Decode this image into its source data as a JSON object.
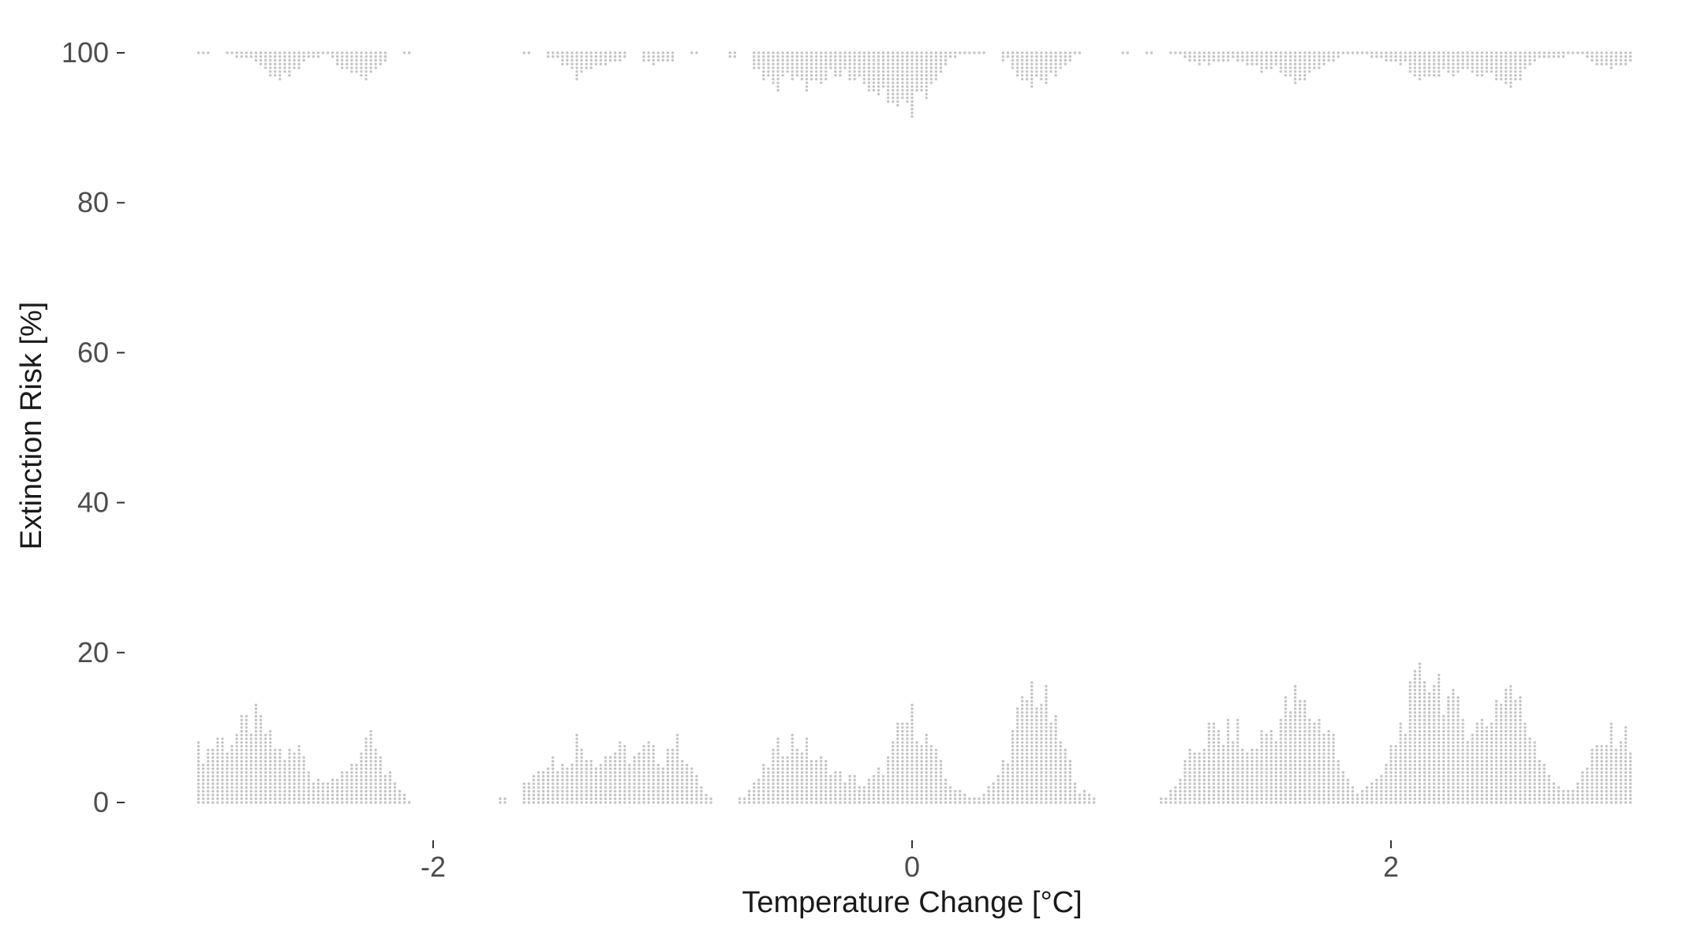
{
  "chart_data": {
    "type": "scatter",
    "subtype": "dot-histogram",
    "title": "",
    "xlabel": "Temperature Change [°C]",
    "ylabel": "Extinction Risk [%]",
    "xlim": [
      -3.0,
      3.0
    ],
    "ylim": [
      0,
      100
    ],
    "x_ticks": [
      -2,
      0,
      2
    ],
    "x_tick_labels": [
      "-2",
      "0",
      "2"
    ],
    "y_ticks": [
      0,
      20,
      40,
      60,
      80,
      100
    ],
    "y_tick_labels": [
      "0",
      "20",
      "40",
      "60",
      "80",
      "100"
    ],
    "grid": false,
    "legend": "none",
    "point_color": "#c4c4c4",
    "bin_width": 0.02,
    "dot_step": 0.5,
    "series": [
      {
        "values_at": 0,
        "x_range": [
          -2.98,
          3.0
        ],
        "stacks": [
          {
            "x": -2.95,
            "y": 7.0
          },
          {
            "x": -2.9,
            "y": 9.0
          },
          {
            "x": -2.85,
            "y": 8.0
          },
          {
            "x": -2.8,
            "y": 10.0
          },
          {
            "x": -2.75,
            "y": 11.5
          },
          {
            "x": -2.7,
            "y": 9.5
          },
          {
            "x": -2.65,
            "y": 7.0
          },
          {
            "x": -2.6,
            "y": 6.5
          },
          {
            "x": -2.55,
            "y": 7.5
          },
          {
            "x": -2.5,
            "y": 3.5
          },
          {
            "x": -2.45,
            "y": 4.0
          },
          {
            "x": -2.4,
            "y": 3.0
          },
          {
            "x": -2.35,
            "y": 5.5
          },
          {
            "x": -2.3,
            "y": 7.0
          },
          {
            "x": -2.25,
            "y": 8.5
          },
          {
            "x": -2.2,
            "y": 4.0
          },
          {
            "x": -2.15,
            "y": 3.0
          },
          {
            "x": -2.1,
            "y": 0.5
          },
          {
            "x": -1.7,
            "y": 1.5
          },
          {
            "x": -1.6,
            "y": 3.0
          },
          {
            "x": -1.55,
            "y": 5.5
          },
          {
            "x": -1.5,
            "y": 6.0
          },
          {
            "x": -1.45,
            "y": 5.0
          },
          {
            "x": -1.4,
            "y": 8.5
          },
          {
            "x": -1.35,
            "y": 7.0
          },
          {
            "x": -1.3,
            "y": 6.0
          },
          {
            "x": -1.25,
            "y": 7.5
          },
          {
            "x": -1.2,
            "y": 7.0
          },
          {
            "x": -1.15,
            "y": 6.0
          },
          {
            "x": -1.1,
            "y": 7.5
          },
          {
            "x": -1.05,
            "y": 6.0
          },
          {
            "x": -1.0,
            "y": 8.5
          },
          {
            "x": -0.95,
            "y": 7.0
          },
          {
            "x": -0.9,
            "y": 3.5
          },
          {
            "x": -0.85,
            "y": 1.0
          },
          {
            "x": -0.7,
            "y": 1.0
          },
          {
            "x": -0.65,
            "y": 3.0
          },
          {
            "x": -0.6,
            "y": 5.5
          },
          {
            "x": -0.55,
            "y": 8.0
          },
          {
            "x": -0.5,
            "y": 8.5
          },
          {
            "x": -0.45,
            "y": 8.0
          },
          {
            "x": -0.4,
            "y": 6.0
          },
          {
            "x": -0.35,
            "y": 5.0
          },
          {
            "x": -0.3,
            "y": 4.0
          },
          {
            "x": -0.25,
            "y": 3.5
          },
          {
            "x": -0.2,
            "y": 2.5
          },
          {
            "x": -0.15,
            "y": 4.0
          },
          {
            "x": -0.1,
            "y": 6.0
          },
          {
            "x": -0.05,
            "y": 10.0
          },
          {
            "x": 0.0,
            "y": 11.5
          },
          {
            "x": 0.05,
            "y": 9.5
          },
          {
            "x": 0.1,
            "y": 6.5
          },
          {
            "x": 0.15,
            "y": 3.0
          },
          {
            "x": 0.2,
            "y": 1.5
          },
          {
            "x": 0.25,
            "y": 1.0
          },
          {
            "x": 0.3,
            "y": 1.5
          },
          {
            "x": 0.35,
            "y": 3.0
          },
          {
            "x": 0.4,
            "y": 7.0
          },
          {
            "x": 0.45,
            "y": 12.0
          },
          {
            "x": 0.5,
            "y": 15.5
          },
          {
            "x": 0.55,
            "y": 14.0
          },
          {
            "x": 0.6,
            "y": 10.0
          },
          {
            "x": 0.65,
            "y": 6.0
          },
          {
            "x": 0.7,
            "y": 2.0
          },
          {
            "x": 0.75,
            "y": 1.0
          },
          {
            "x": 1.05,
            "y": 1.0
          },
          {
            "x": 1.1,
            "y": 2.5
          },
          {
            "x": 1.15,
            "y": 5.5
          },
          {
            "x": 1.2,
            "y": 8.0
          },
          {
            "x": 1.25,
            "y": 10.0
          },
          {
            "x": 1.3,
            "y": 9.0
          },
          {
            "x": 1.35,
            "y": 10.5
          },
          {
            "x": 1.4,
            "y": 6.5
          },
          {
            "x": 1.45,
            "y": 9.0
          },
          {
            "x": 1.5,
            "y": 10.0
          },
          {
            "x": 1.55,
            "y": 12.0
          },
          {
            "x": 1.6,
            "y": 14.0
          },
          {
            "x": 1.65,
            "y": 12.5
          },
          {
            "x": 1.7,
            "y": 11.0
          },
          {
            "x": 1.75,
            "y": 10.0
          },
          {
            "x": 1.8,
            "y": 4.0
          },
          {
            "x": 1.85,
            "y": 2.0
          },
          {
            "x": 1.9,
            "y": 2.5
          },
          {
            "x": 1.95,
            "y": 3.0
          },
          {
            "x": 2.0,
            "y": 7.0
          },
          {
            "x": 2.05,
            "y": 11.0
          },
          {
            "x": 2.1,
            "y": 15.0
          },
          {
            "x": 2.15,
            "y": 18.0
          },
          {
            "x": 2.2,
            "y": 16.5
          },
          {
            "x": 2.25,
            "y": 13.0
          },
          {
            "x": 2.3,
            "y": 11.5
          },
          {
            "x": 2.35,
            "y": 10.5
          },
          {
            "x": 2.4,
            "y": 11.0
          },
          {
            "x": 2.45,
            "y": 14.5
          },
          {
            "x": 2.5,
            "y": 16.0
          },
          {
            "x": 2.55,
            "y": 12.0
          },
          {
            "x": 2.6,
            "y": 9.0
          },
          {
            "x": 2.65,
            "y": 5.0
          },
          {
            "x": 2.7,
            "y": 2.0
          },
          {
            "x": 2.75,
            "y": 2.0
          },
          {
            "x": 2.8,
            "y": 4.0
          },
          {
            "x": 2.85,
            "y": 7.0
          },
          {
            "x": 2.9,
            "y": 8.5
          },
          {
            "x": 2.95,
            "y": 10.0
          },
          {
            "x": 3.0,
            "y": 8.0
          }
        ]
      },
      {
        "values_at": 100,
        "x_range": [
          -2.98,
          3.0
        ],
        "stacks": [
          {
            "x": -2.95,
            "y": 0.5
          },
          {
            "x": -2.85,
            "y": 0.5
          },
          {
            "x": -2.8,
            "y": 1.0
          },
          {
            "x": -2.75,
            "y": 1.0
          },
          {
            "x": -2.7,
            "y": 2.5
          },
          {
            "x": -2.65,
            "y": 4.0
          },
          {
            "x": -2.6,
            "y": 3.0
          },
          {
            "x": -2.55,
            "y": 2.0
          },
          {
            "x": -2.5,
            "y": 1.0
          },
          {
            "x": -2.45,
            "y": 0.5
          },
          {
            "x": -2.4,
            "y": 1.5
          },
          {
            "x": -2.35,
            "y": 3.0
          },
          {
            "x": -2.3,
            "y": 3.5
          },
          {
            "x": -2.25,
            "y": 2.5
          },
          {
            "x": -2.2,
            "y": 1.5
          },
          {
            "x": -2.1,
            "y": 0.5
          },
          {
            "x": -1.6,
            "y": 0.5
          },
          {
            "x": -1.5,
            "y": 1.0
          },
          {
            "x": -1.45,
            "y": 2.0
          },
          {
            "x": -1.4,
            "y": 3.5
          },
          {
            "x": -1.35,
            "y": 3.0
          },
          {
            "x": -1.3,
            "y": 2.0
          },
          {
            "x": -1.25,
            "y": 1.5
          },
          {
            "x": -1.2,
            "y": 1.0
          },
          {
            "x": -1.1,
            "y": 1.5
          },
          {
            "x": -1.05,
            "y": 2.0
          },
          {
            "x": -1.0,
            "y": 1.5
          },
          {
            "x": -0.9,
            "y": 0.5
          },
          {
            "x": -0.75,
            "y": 1.0
          },
          {
            "x": -0.65,
            "y": 2.0
          },
          {
            "x": -0.6,
            "y": 4.0
          },
          {
            "x": -0.55,
            "y": 4.5
          },
          {
            "x": -0.5,
            "y": 3.5
          },
          {
            "x": -0.45,
            "y": 5.0
          },
          {
            "x": -0.4,
            "y": 4.0
          },
          {
            "x": -0.35,
            "y": 3.5
          },
          {
            "x": -0.3,
            "y": 3.0
          },
          {
            "x": -0.25,
            "y": 3.5
          },
          {
            "x": -0.2,
            "y": 4.5
          },
          {
            "x": -0.15,
            "y": 5.0
          },
          {
            "x": -0.1,
            "y": 6.5
          },
          {
            "x": -0.05,
            "y": 6.0
          },
          {
            "x": 0.0,
            "y": 7.5
          },
          {
            "x": 0.05,
            "y": 6.5
          },
          {
            "x": 0.1,
            "y": 3.5
          },
          {
            "x": 0.15,
            "y": 1.5
          },
          {
            "x": 0.2,
            "y": 0.5
          },
          {
            "x": 0.25,
            "y": 0.5
          },
          {
            "x": 0.3,
            "y": 0.5
          },
          {
            "x": 0.4,
            "y": 1.5
          },
          {
            "x": 0.45,
            "y": 3.5
          },
          {
            "x": 0.5,
            "y": 4.5
          },
          {
            "x": 0.55,
            "y": 4.0
          },
          {
            "x": 0.6,
            "y": 3.0
          },
          {
            "x": 0.65,
            "y": 1.5
          },
          {
            "x": 0.7,
            "y": 0.5
          },
          {
            "x": 0.9,
            "y": 0.5
          },
          {
            "x": 1.0,
            "y": 0.5
          },
          {
            "x": 1.1,
            "y": 0.5
          },
          {
            "x": 1.15,
            "y": 1.0
          },
          {
            "x": 1.2,
            "y": 2.0
          },
          {
            "x": 1.25,
            "y": 1.5
          },
          {
            "x": 1.3,
            "y": 1.5
          },
          {
            "x": 1.35,
            "y": 1.0
          },
          {
            "x": 1.4,
            "y": 2.0
          },
          {
            "x": 1.45,
            "y": 2.5
          },
          {
            "x": 1.5,
            "y": 2.5
          },
          {
            "x": 1.55,
            "y": 3.0
          },
          {
            "x": 1.6,
            "y": 4.0
          },
          {
            "x": 1.65,
            "y": 3.5
          },
          {
            "x": 1.7,
            "y": 2.5
          },
          {
            "x": 1.75,
            "y": 1.5
          },
          {
            "x": 1.8,
            "y": 0.5
          },
          {
            "x": 1.85,
            "y": 0.5
          },
          {
            "x": 1.9,
            "y": 0.5
          },
          {
            "x": 1.95,
            "y": 1.0
          },
          {
            "x": 2.0,
            "y": 1.5
          },
          {
            "x": 2.05,
            "y": 2.0
          },
          {
            "x": 2.1,
            "y": 3.0
          },
          {
            "x": 2.15,
            "y": 4.0
          },
          {
            "x": 2.2,
            "y": 3.5
          },
          {
            "x": 2.25,
            "y": 3.0
          },
          {
            "x": 2.3,
            "y": 2.5
          },
          {
            "x": 2.35,
            "y": 3.5
          },
          {
            "x": 2.4,
            "y": 3.0
          },
          {
            "x": 2.45,
            "y": 4.0
          },
          {
            "x": 2.5,
            "y": 5.0
          },
          {
            "x": 2.55,
            "y": 3.0
          },
          {
            "x": 2.6,
            "y": 1.5
          },
          {
            "x": 2.65,
            "y": 1.0
          },
          {
            "x": 2.7,
            "y": 1.0
          },
          {
            "x": 2.75,
            "y": 0.5
          },
          {
            "x": 2.8,
            "y": 0.5
          },
          {
            "x": 2.85,
            "y": 1.5
          },
          {
            "x": 2.9,
            "y": 2.0
          },
          {
            "x": 2.95,
            "y": 2.5
          },
          {
            "x": 3.0,
            "y": 1.5
          }
        ]
      }
    ]
  }
}
